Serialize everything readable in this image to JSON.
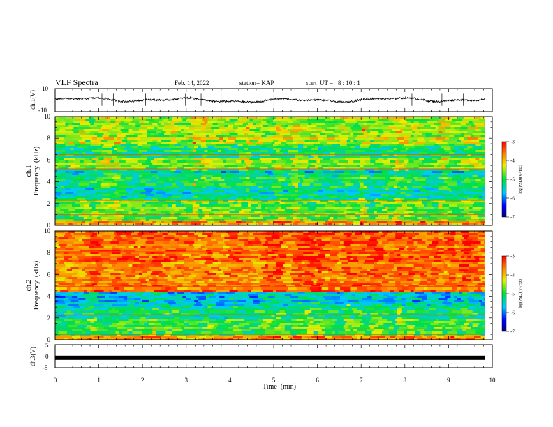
{
  "header": {
    "title": "VLF Spectra",
    "date": "Feb. 14, 2022",
    "station": "station= KAP",
    "start_ut": "start  UT =   8 : 10 : 1"
  },
  "chart_data": [
    {
      "id": "ch1-waveform",
      "type": "line",
      "ylabel": "ch.1(V)",
      "ylim": [
        -10,
        10
      ],
      "yticks": [
        "10",
        "-10"
      ],
      "xlim": [
        0,
        10
      ],
      "x_extent_min": 9.83,
      "approx_amplitude_range": [
        -3,
        3
      ]
    },
    {
      "id": "ch1-spectrogram",
      "type": "heatmap",
      "ylabel": "ch.1",
      "ylabel2": "Frequency  (kHz)",
      "ylim": [
        0,
        10
      ],
      "yticks": [
        "0",
        "2",
        "4",
        "6",
        "8",
        "10"
      ],
      "xlim": [
        0,
        10
      ],
      "x_extent_min": 9.83,
      "colorbar": {
        "label": "log(PSD)(V²/Hz)",
        "range": [
          -7,
          -3
        ],
        "ticks": [
          "-3",
          "-4",
          "-5",
          "-6",
          "-7"
        ]
      },
      "bands_kHz": [
        {
          "from": 0,
          "to": 0.4,
          "level": -3.8
        },
        {
          "from": 0.4,
          "to": 2.4,
          "level": -4.9
        },
        {
          "from": 2.4,
          "to": 3.5,
          "level": -5.4
        },
        {
          "from": 3.5,
          "to": 4.5,
          "level": -5.2
        },
        {
          "from": 4.5,
          "to": 5.2,
          "level": -5.5
        },
        {
          "from": 5.2,
          "to": 6.2,
          "level": -4.7
        },
        {
          "from": 6.2,
          "to": 7.5,
          "level": -5.2
        },
        {
          "from": 7.5,
          "to": 10,
          "level": -4.6
        }
      ]
    },
    {
      "id": "ch2-spectrogram",
      "type": "heatmap",
      "ylabel": "ch.2",
      "ylabel2": "Frequency  (kHz)",
      "ylim": [
        0,
        10
      ],
      "yticks": [
        "0",
        "2",
        "4",
        "6",
        "8",
        "10"
      ],
      "xlim": [
        0,
        10
      ],
      "x_extent_min": 9.83,
      "colorbar": {
        "label": "log(PSD)(V²/Hz)",
        "range": [
          -7,
          -3
        ],
        "ticks": [
          "-3",
          "-4",
          "-5",
          "-6",
          "-7"
        ]
      },
      "bands_kHz": [
        {
          "from": 0,
          "to": 0.3,
          "level": -3.8
        },
        {
          "from": 0.3,
          "to": 2.0,
          "level": -5.0
        },
        {
          "from": 2.0,
          "to": 3.0,
          "level": -5.3
        },
        {
          "from": 3.0,
          "to": 4.5,
          "level": -5.7
        },
        {
          "from": 4.5,
          "to": 10,
          "level": -3.7
        }
      ]
    },
    {
      "id": "ch3-waveform",
      "type": "line",
      "ylabel": "ch.3(V)",
      "ylim": [
        -5,
        5
      ],
      "yticks": [
        "5",
        "0",
        "-5"
      ],
      "xlim": [
        0,
        10
      ],
      "x_extent_min": 9.83,
      "level": -0.7,
      "xlabel": "Time  (min)",
      "xticks": [
        "0",
        "1",
        "2",
        "3",
        "4",
        "5",
        "6",
        "7",
        "8",
        "9",
        "10"
      ]
    }
  ]
}
